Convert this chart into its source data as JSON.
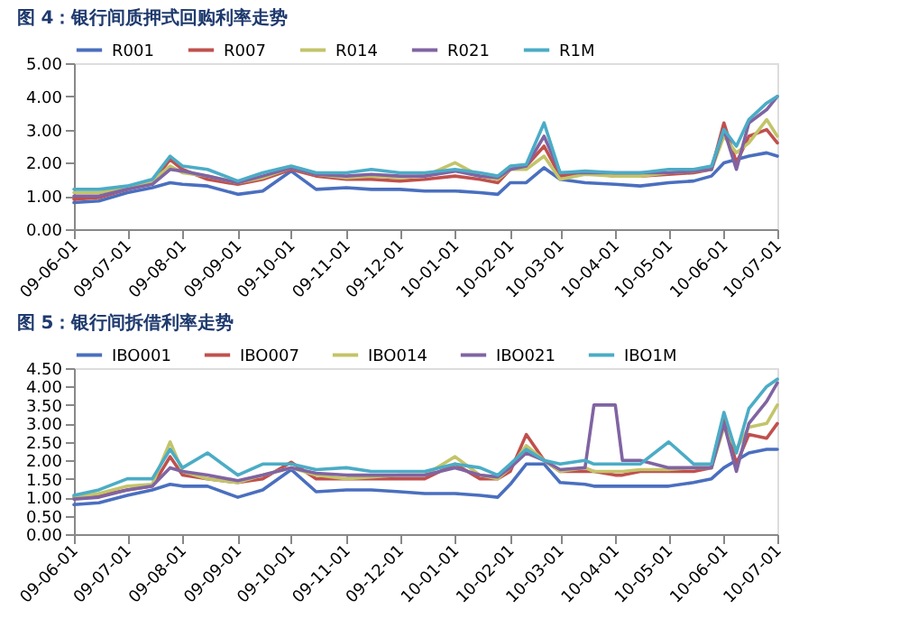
{
  "chart_data": [
    {
      "type": "line",
      "title": "图 4：银行间质押式回购利率走势",
      "legend": "top",
      "marker": "none",
      "line_style": "solid",
      "x": [
        "2009-06-01",
        "2009-06-15",
        "2009-07-01",
        "2009-07-15",
        "2009-07-25",
        "2009-08-01",
        "2009-08-15",
        "2009-09-01",
        "2009-09-15",
        "2009-10-01",
        "2009-10-15",
        "2009-11-01",
        "2009-11-15",
        "2009-12-01",
        "2009-12-15",
        "2010-01-01",
        "2010-01-15",
        "2010-01-25",
        "2010-02-01",
        "2010-02-10",
        "2010-02-20",
        "2010-03-01",
        "2010-03-15",
        "2010-04-01",
        "2010-04-15",
        "2010-05-01",
        "2010-05-15",
        "2010-05-25",
        "2010-06-01",
        "2010-06-08",
        "2010-06-15",
        "2010-06-25",
        "2010-07-01"
      ],
      "xlim": [
        "2009-06-01",
        "2010-07-01"
      ],
      "xticks": [
        {
          "value": "2009-06-01",
          "label": "09-06-01"
        },
        {
          "value": "2009-07-01",
          "label": "09-07-01"
        },
        {
          "value": "2009-08-01",
          "label": "09-08-01"
        },
        {
          "value": "2009-09-01",
          "label": "09-09-01"
        },
        {
          "value": "2009-10-01",
          "label": "09-10-01"
        },
        {
          "value": "2009-11-01",
          "label": "09-11-01"
        },
        {
          "value": "2009-12-01",
          "label": "09-12-01"
        },
        {
          "value": "2010-01-01",
          "label": "10-01-01"
        },
        {
          "value": "2010-02-01",
          "label": "10-02-01"
        },
        {
          "value": "2010-03-01",
          "label": "10-03-01"
        },
        {
          "value": "2010-04-01",
          "label": "10-04-01"
        },
        {
          "value": "2010-05-01",
          "label": "10-05-01"
        },
        {
          "value": "2010-06-01",
          "label": "10-06-01"
        },
        {
          "value": "2010-07-01",
          "label": "10-07-01"
        }
      ],
      "ylim": [
        0,
        5
      ],
      "yticks": [
        {
          "value": 0,
          "label": "0.00"
        },
        {
          "value": 1,
          "label": "1.00"
        },
        {
          "value": 2,
          "label": "2.00"
        },
        {
          "value": 3,
          "label": "3.00"
        },
        {
          "value": 4,
          "label": "4.00"
        },
        {
          "value": 5,
          "label": "5.00"
        }
      ],
      "series": [
        {
          "name": "R001",
          "color": "#4a6fbf",
          "values": [
            0.8,
            0.85,
            1.1,
            1.25,
            1.4,
            1.35,
            1.3,
            1.05,
            1.15,
            1.75,
            1.2,
            1.25,
            1.2,
            1.2,
            1.15,
            1.15,
            1.1,
            1.05,
            1.4,
            1.4,
            1.85,
            1.5,
            1.4,
            1.35,
            1.3,
            1.4,
            1.45,
            1.6,
            2.0,
            2.1,
            2.2,
            2.3,
            2.2
          ]
        },
        {
          "name": "R007",
          "color": "#c0504d",
          "values": [
            0.9,
            0.95,
            1.2,
            1.4,
            2.1,
            1.8,
            1.5,
            1.35,
            1.5,
            1.8,
            1.6,
            1.5,
            1.5,
            1.45,
            1.5,
            1.6,
            1.5,
            1.4,
            1.8,
            1.9,
            2.5,
            1.6,
            1.7,
            1.6,
            1.6,
            1.65,
            1.7,
            1.8,
            3.2,
            2.0,
            2.8,
            3.0,
            2.6
          ]
        },
        {
          "name": "R014",
          "color": "#c3c46a",
          "values": [
            1.1,
            1.1,
            1.25,
            1.45,
            1.9,
            1.7,
            1.6,
            1.4,
            1.55,
            1.85,
            1.65,
            1.55,
            1.6,
            1.55,
            1.6,
            2.0,
            1.6,
            1.5,
            1.8,
            1.8,
            2.2,
            1.5,
            1.65,
            1.6,
            1.6,
            1.7,
            1.75,
            1.8,
            2.8,
            2.3,
            2.6,
            3.3,
            2.8
          ]
        },
        {
          "name": "R021",
          "color": "#8064a2",
          "values": [
            1.0,
            1.0,
            1.2,
            1.35,
            1.8,
            1.75,
            1.6,
            1.4,
            1.6,
            1.85,
            1.65,
            1.6,
            1.65,
            1.6,
            1.6,
            1.75,
            1.6,
            1.55,
            1.8,
            1.9,
            2.8,
            1.7,
            1.7,
            1.7,
            1.7,
            1.7,
            1.75,
            1.8,
            3.0,
            1.8,
            3.2,
            3.6,
            4.0
          ]
        },
        {
          "name": "R1M",
          "color": "#4bacc6",
          "values": [
            1.2,
            1.2,
            1.3,
            1.5,
            2.2,
            1.9,
            1.8,
            1.45,
            1.7,
            1.9,
            1.7,
            1.7,
            1.8,
            1.7,
            1.7,
            1.8,
            1.7,
            1.6,
            1.9,
            1.95,
            3.2,
            1.7,
            1.75,
            1.7,
            1.7,
            1.8,
            1.8,
            1.9,
            3.0,
            2.5,
            3.3,
            3.8,
            4.0
          ]
        }
      ]
    },
    {
      "type": "line",
      "title": "图 5：银行间拆借利率走势",
      "legend": "top",
      "marker": "none",
      "line_style": "solid",
      "x": [
        "2009-06-01",
        "2009-06-15",
        "2009-07-01",
        "2009-07-15",
        "2009-07-25",
        "2009-08-01",
        "2009-08-15",
        "2009-09-01",
        "2009-09-15",
        "2009-10-01",
        "2009-10-15",
        "2009-11-01",
        "2009-11-15",
        "2009-12-01",
        "2009-12-15",
        "2010-01-01",
        "2010-01-15",
        "2010-01-25",
        "2010-02-01",
        "2010-02-10",
        "2010-02-20",
        "2010-03-01",
        "2010-03-15",
        "2010-03-20",
        "2010-04-01",
        "2010-04-05",
        "2010-04-15",
        "2010-05-01",
        "2010-05-15",
        "2010-05-25",
        "2010-06-01",
        "2010-06-08",
        "2010-06-15",
        "2010-06-25",
        "2010-07-01"
      ],
      "xlim": [
        "2009-06-01",
        "2010-07-01"
      ],
      "xticks": [
        {
          "value": "2009-06-01",
          "label": "09-06-01"
        },
        {
          "value": "2009-07-01",
          "label": "09-07-01"
        },
        {
          "value": "2009-08-01",
          "label": "09-08-01"
        },
        {
          "value": "2009-09-01",
          "label": "09-09-01"
        },
        {
          "value": "2009-10-01",
          "label": "09-10-01"
        },
        {
          "value": "2009-11-01",
          "label": "09-11-01"
        },
        {
          "value": "2009-12-01",
          "label": "09-12-01"
        },
        {
          "value": "2010-01-01",
          "label": "10-01-01"
        },
        {
          "value": "2010-02-01",
          "label": "10-02-01"
        },
        {
          "value": "2010-03-01",
          "label": "10-03-01"
        },
        {
          "value": "2010-04-01",
          "label": "10-04-01"
        },
        {
          "value": "2010-05-01",
          "label": "10-05-01"
        },
        {
          "value": "2010-06-01",
          "label": "10-06-01"
        },
        {
          "value": "2010-07-01",
          "label": "10-07-01"
        }
      ],
      "ylim": [
        0,
        4.5
      ],
      "yticks": [
        {
          "value": 0,
          "label": "0.00"
        },
        {
          "value": 0.5,
          "label": "0.50"
        },
        {
          "value": 1,
          "label": "1.00"
        },
        {
          "value": 1.5,
          "label": "1.50"
        },
        {
          "value": 2,
          "label": "2.00"
        },
        {
          "value": 2.5,
          "label": "2.50"
        },
        {
          "value": 3,
          "label": "3.00"
        },
        {
          "value": 3.5,
          "label": "3.50"
        },
        {
          "value": 4,
          "label": "4.00"
        },
        {
          "value": 4.5,
          "label": "4.50"
        }
      ],
      "series": [
        {
          "name": "IBO001",
          "color": "#4a6fbf",
          "values": [
            0.8,
            0.85,
            1.05,
            1.2,
            1.35,
            1.3,
            1.3,
            1.0,
            1.2,
            1.75,
            1.15,
            1.2,
            1.2,
            1.15,
            1.1,
            1.1,
            1.05,
            1.0,
            1.35,
            1.9,
            1.9,
            1.4,
            1.35,
            1.3,
            1.3,
            1.3,
            1.3,
            1.3,
            1.4,
            1.5,
            1.8,
            2.0,
            2.2,
            2.3,
            2.3
          ]
        },
        {
          "name": "IBO007",
          "color": "#c0504d",
          "values": [
            1.0,
            1.05,
            1.2,
            1.3,
            2.1,
            1.6,
            1.5,
            1.4,
            1.5,
            1.95,
            1.5,
            1.5,
            1.5,
            1.5,
            1.5,
            1.9,
            1.5,
            1.5,
            1.7,
            2.7,
            2.0,
            1.7,
            1.7,
            1.7,
            1.6,
            1.6,
            1.7,
            1.7,
            1.7,
            1.8,
            3.2,
            1.9,
            2.7,
            2.6,
            3.0
          ]
        },
        {
          "name": "IBO014",
          "color": "#c3c46a",
          "values": [
            1.0,
            1.1,
            1.3,
            1.35,
            2.5,
            1.7,
            1.5,
            1.4,
            1.6,
            1.8,
            1.6,
            1.5,
            1.55,
            1.6,
            1.6,
            2.1,
            1.6,
            1.5,
            1.8,
            2.4,
            2.0,
            1.7,
            1.8,
            1.7,
            1.7,
            1.7,
            1.75,
            1.75,
            1.8,
            1.8,
            2.9,
            2.3,
            2.9,
            3.0,
            3.5
          ]
        },
        {
          "name": "IBO021",
          "color": "#8064a2",
          "values": [
            0.95,
            1.0,
            1.2,
            1.3,
            1.8,
            1.7,
            1.6,
            1.45,
            1.6,
            1.8,
            1.65,
            1.6,
            1.6,
            1.6,
            1.6,
            1.8,
            1.6,
            1.55,
            1.8,
            2.2,
            2.0,
            1.75,
            1.8,
            3.5,
            3.5,
            2.0,
            2.0,
            1.8,
            1.8,
            1.8,
            3.0,
            1.7,
            3.0,
            3.6,
            4.1
          ]
        },
        {
          "name": "IBO1M",
          "color": "#4bacc6",
          "values": [
            1.05,
            1.2,
            1.5,
            1.5,
            2.3,
            1.8,
            2.2,
            1.6,
            1.9,
            1.9,
            1.75,
            1.8,
            1.7,
            1.7,
            1.7,
            1.9,
            1.8,
            1.6,
            1.9,
            2.3,
            2.0,
            1.9,
            2.0,
            1.9,
            1.9,
            1.9,
            1.9,
            2.5,
            1.9,
            1.9,
            3.3,
            2.2,
            3.4,
            4.0,
            4.2
          ]
        }
      ]
    }
  ]
}
